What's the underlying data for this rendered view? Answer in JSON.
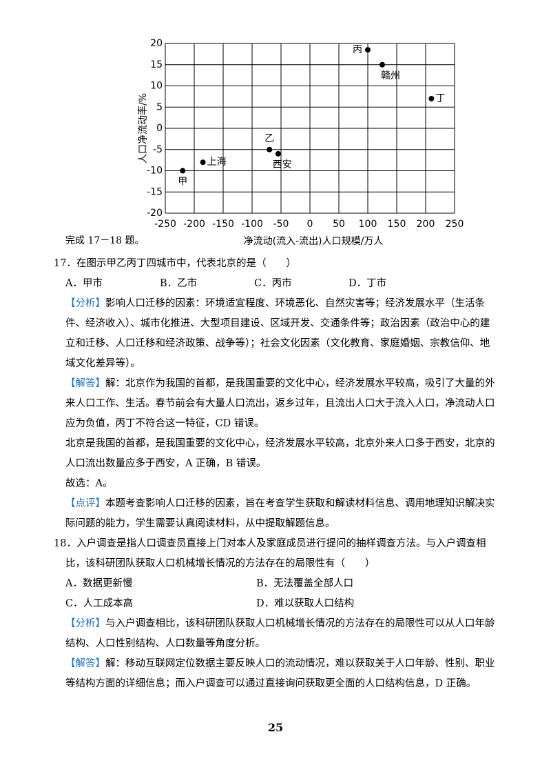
{
  "chart_data": {
    "type": "scatter",
    "xlabel": "净流动(流入-流出)人口规模/万人",
    "ylabel": "人口净流动率/%",
    "x": [
      -220,
      -185,
      -70,
      -55,
      100,
      125,
      210
    ],
    "values": [
      -10,
      -8,
      -5,
      -6,
      18.5,
      15,
      7
    ],
    "point_labels": [
      "甲",
      "上海",
      "乙",
      "西安",
      "丙",
      "赣州",
      "丁"
    ],
    "color": "#000000",
    "xlim": [
      -250,
      250
    ],
    "xticks": [
      -250,
      -200,
      -150,
      -100,
      -50,
      0,
      50,
      100,
      150,
      200,
      250
    ],
    "ylim": [
      -20,
      20
    ],
    "yticks": [
      -20,
      -15,
      -10,
      -5,
      0,
      5,
      10,
      15,
      20
    ],
    "grid": true
  },
  "intro": "完成 17－18 题。",
  "questions": [
    {
      "number": "17．",
      "stem": "在图示甲乙丙丁四城市中，代表北京的是（　　）",
      "options": [
        "A．甲市",
        "B．乙市",
        "C．丙市",
        "D．丁市"
      ],
      "sections": [
        {
          "tag": "【分析】",
          "paragraphs": [
            "影响人口迁移的因素：环境适宜程度、环境恶化、自然灾害等；经济发展水平（生活条件、经济收入）、城市化推进、大型项目建设、区域开发、交通条件等；政治因素（政治中心的建立和迁移、人口迁移和经济政策、战争等）；社会文化因素（文化教育、家庭婚姻、宗教信仰、地域文化差异等）。"
          ]
        },
        {
          "tag": "【解答】",
          "paragraphs": [
            "解：北京作为我国的首都，是我国重要的文化中心，经济发展水平较高，吸引了大量的外来人口工作、生活。春节前会有大量人口流出，返乡过年，且流出人口大于流入人口，净流动人口应为负值，丙丁不符合这一特征，CD 错误。",
            "北京是我国的首都，是我国重要的文化中心，经济发展水平较高，北京外来人口多于西安，北京的人口流出数量应多于西安，A 正确，B 错误。",
            "故选：A。"
          ]
        },
        {
          "tag": "【点评】",
          "paragraphs": [
            "本题考查影响人口迁移的因素，旨在考查学生获取和解读材料信息、调用地理知识解决实际问题的能力，学生需要认真阅读材料，从中提取解题信息。"
          ]
        }
      ]
    },
    {
      "number": "18．",
      "stem": "入户调查是指人口调查员直接上门对本人及家庭成员进行提问的抽样调查方法。与入户调查相比，该科研团队获取人口机械增长情况的方法存在的局限性有（　　）",
      "options": [
        "A．数据更新慢",
        "B．无法覆盖全部人口",
        "C．人工成本高",
        "D．难以获取人口结构"
      ],
      "sections": [
        {
          "tag": "【分析】",
          "paragraphs": [
            "与入户调查相比，该科研团队获取人口机械增长情况的方法存在的局限性可以从人口年龄结构、人口性别结构、人口数量等角度分析。"
          ]
        },
        {
          "tag": "【解答】",
          "paragraphs": [
            "解：移动互联网定位数据主要反映人口的流动情况，难以获取关于人口年龄、性别、职业等结构方面的详细信息；而入户调查可以通过直接询问获取更全面的人口结构信息，D 正确。"
          ]
        }
      ]
    }
  ],
  "page_number": "25"
}
